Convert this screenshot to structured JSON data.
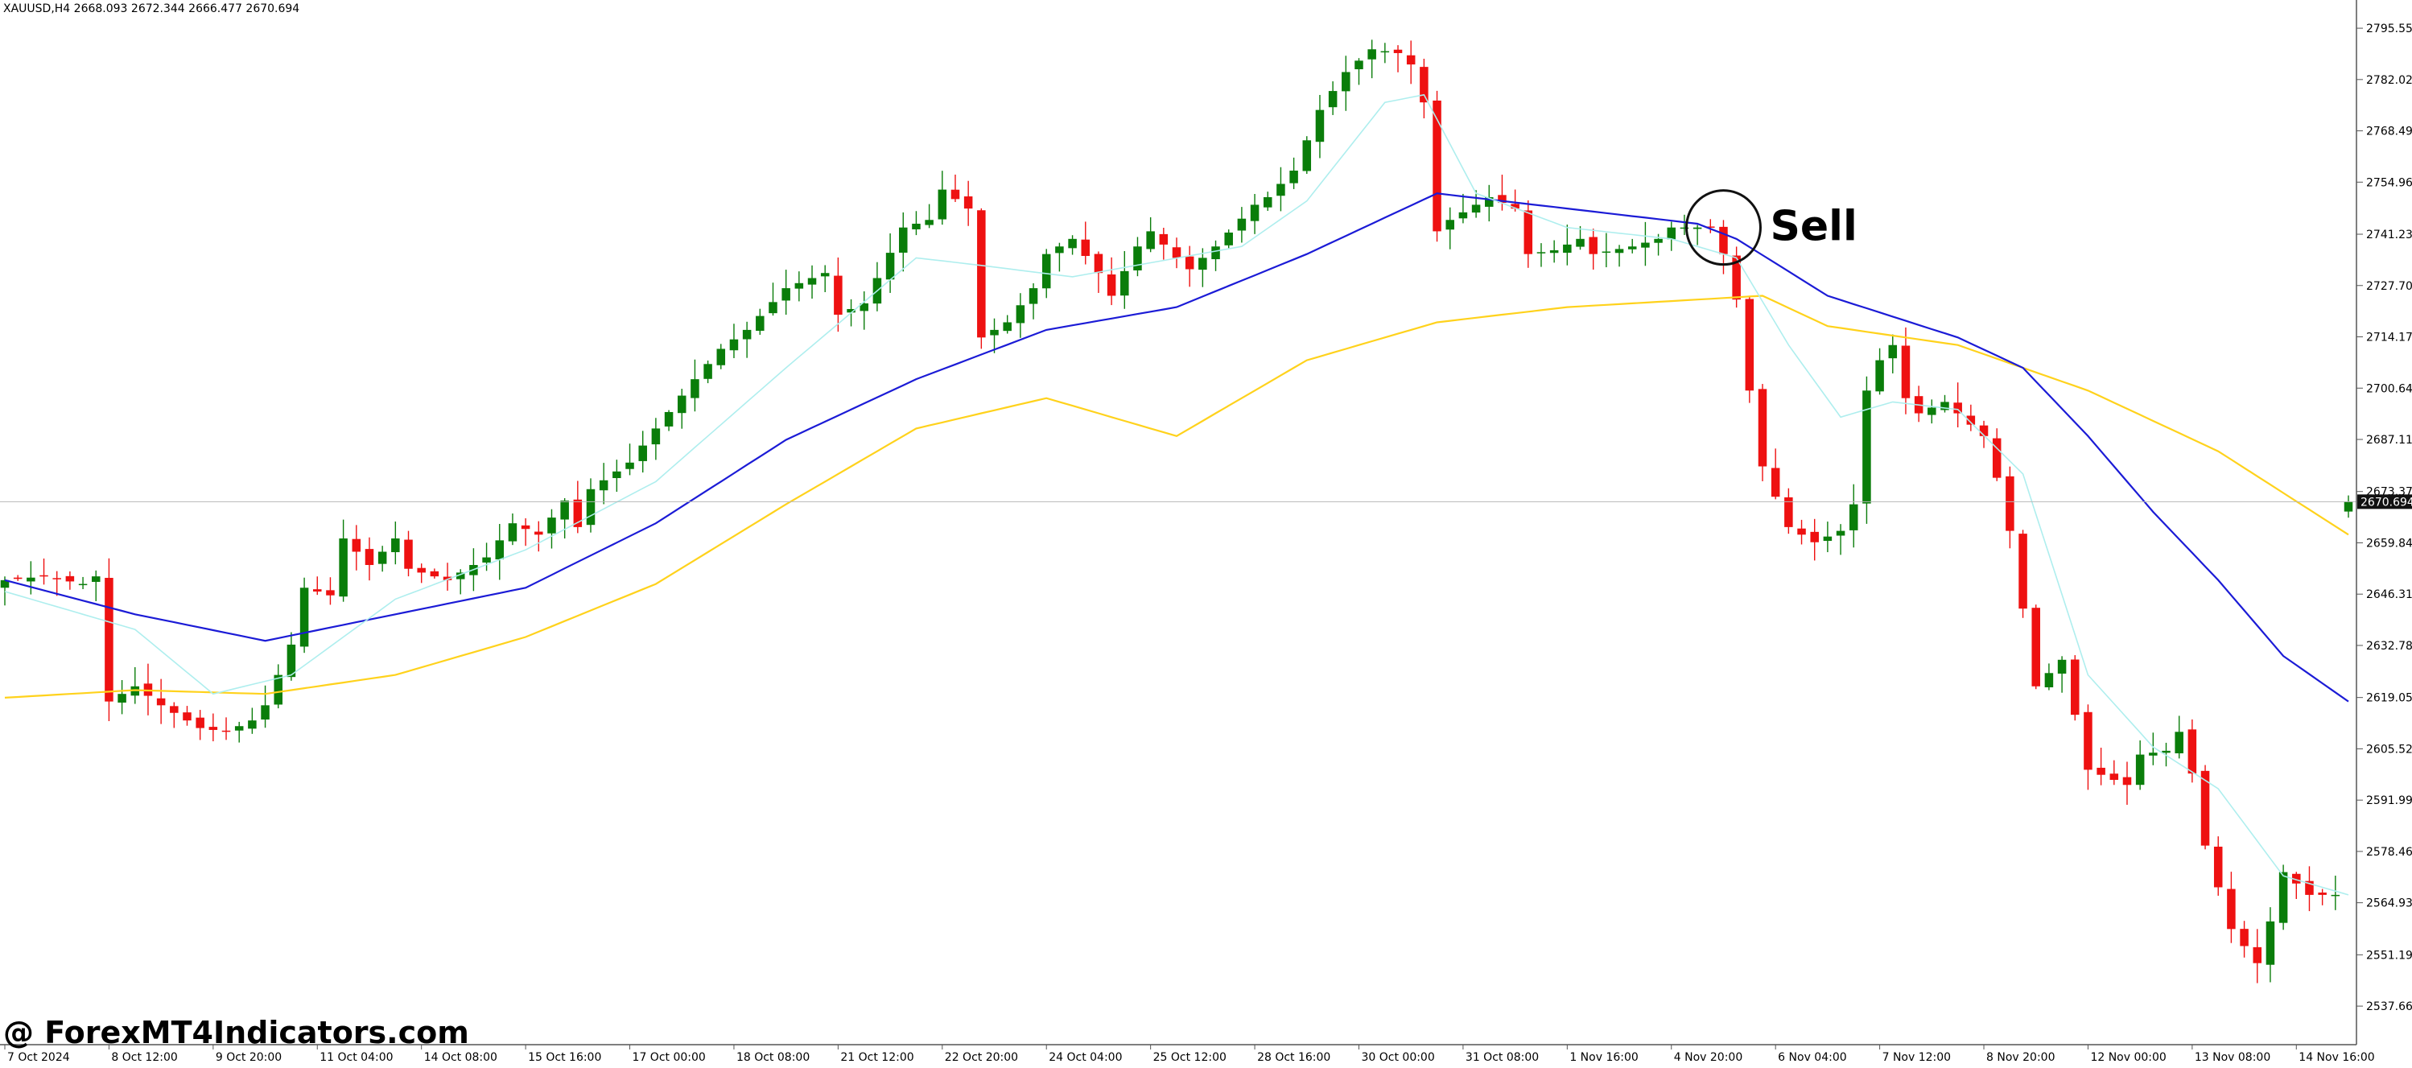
{
  "header": {
    "info": "XAUUSD,H4  2668.093 2672.344 2666.477 2670.694"
  },
  "annotation": {
    "label": "Sell"
  },
  "watermark": {
    "text": "@ ForexMT4Indicators.com"
  },
  "current_price_label": "2670.694",
  "chart_data": {
    "type": "candlestick",
    "symbol": "XAUUSD",
    "timeframe": "H4",
    "last_quote": {
      "open": 2668.093,
      "high": 2672.344,
      "low": 2666.477,
      "close": 2670.694
    },
    "ylim": [
      2527.5,
      2803.0
    ],
    "y_ticks": [
      "2795.555",
      "2782.025",
      "2768.495",
      "2754.965",
      "2741.230",
      "2727.700",
      "2714.170",
      "2700.640",
      "2687.110",
      "2673.375",
      "2659.845",
      "2646.315",
      "2632.785",
      "2619.050",
      "2605.520",
      "2591.990",
      "2578.460",
      "2564.930",
      "2551.195",
      "2537.665"
    ],
    "x_tick_labels": [
      {
        "bar": 0,
        "label": "7 Oct 2024"
      },
      {
        "bar": 8,
        "label": "8 Oct 12:00"
      },
      {
        "bar": 16,
        "label": "9 Oct 20:00"
      },
      {
        "bar": 24,
        "label": "11 Oct 04:00"
      },
      {
        "bar": 32,
        "label": "14 Oct 08:00"
      },
      {
        "bar": 40,
        "label": "15 Oct 16:00"
      },
      {
        "bar": 48,
        "label": "17 Oct 00:00"
      },
      {
        "bar": 56,
        "label": "18 Oct 08:00"
      },
      {
        "bar": 64,
        "label": "21 Oct 12:00"
      },
      {
        "bar": 72,
        "label": "22 Oct 20:00"
      },
      {
        "bar": 80,
        "label": "24 Oct 04:00"
      },
      {
        "bar": 88,
        "label": "25 Oct 12:00"
      },
      {
        "bar": 96,
        "label": "28 Oct 16:00"
      },
      {
        "bar": 104,
        "label": "30 Oct 00:00"
      },
      {
        "bar": 112,
        "label": "31 Oct 08:00"
      },
      {
        "bar": 120,
        "label": "1 Nov 16:00"
      },
      {
        "bar": 128,
        "label": "4 Nov 20:00"
      },
      {
        "bar": 136,
        "label": "6 Nov 04:00"
      },
      {
        "bar": 144,
        "label": "7 Nov 12:00"
      },
      {
        "bar": 152,
        "label": "8 Nov 20:00"
      },
      {
        "bar": 160,
        "label": "12 Nov 00:00"
      },
      {
        "bar": 168,
        "label": "13 Nov 08:00"
      },
      {
        "bar": 176,
        "label": "14 Nov 16:00"
      }
    ],
    "close_anchors": [
      [
        0,
        2650
      ],
      [
        3,
        2651
      ],
      [
        6,
        2649
      ],
      [
        7,
        2651
      ],
      [
        8,
        2618
      ],
      [
        10,
        2622
      ],
      [
        12,
        2617
      ],
      [
        15,
        2611
      ],
      [
        17,
        2610
      ],
      [
        19,
        2613
      ],
      [
        20,
        2617
      ],
      [
        22,
        2633
      ],
      [
        23,
        2648
      ],
      [
        25,
        2646
      ],
      [
        26,
        2661
      ],
      [
        28,
        2654
      ],
      [
        30,
        2661
      ],
      [
        31,
        2653
      ],
      [
        34,
        2650
      ],
      [
        37,
        2656
      ],
      [
        39,
        2665
      ],
      [
        41,
        2662
      ],
      [
        43,
        2671
      ],
      [
        44,
        2664
      ],
      [
        45,
        2674
      ],
      [
        48,
        2681
      ],
      [
        50,
        2690
      ],
      [
        53,
        2703
      ],
      [
        55,
        2711
      ],
      [
        57,
        2716
      ],
      [
        60,
        2727
      ],
      [
        63,
        2731
      ],
      [
        64,
        2720
      ],
      [
        66,
        2723
      ],
      [
        69,
        2743
      ],
      [
        71,
        2745
      ],
      [
        72,
        2753
      ],
      [
        74,
        2748
      ],
      [
        75,
        2714
      ],
      [
        77,
        2718
      ],
      [
        79,
        2727
      ],
      [
        80,
        2736
      ],
      [
        82,
        2740
      ],
      [
        84,
        2731
      ],
      [
        85,
        2725
      ],
      [
        87,
        2738
      ],
      [
        88,
        2742
      ],
      [
        90,
        2735
      ],
      [
        91,
        2732
      ],
      [
        93,
        2738
      ],
      [
        96,
        2749
      ],
      [
        97,
        2751
      ],
      [
        99,
        2758
      ],
      [
        101,
        2774
      ],
      [
        103,
        2784
      ],
      [
        105,
        2790
      ],
      [
        107,
        2789
      ],
      [
        108,
        2786
      ],
      [
        109,
        2776
      ],
      [
        110,
        2742
      ],
      [
        111,
        2745
      ],
      [
        113,
        2749
      ],
      [
        114,
        2751
      ],
      [
        116,
        2748
      ],
      [
        117,
        2736
      ],
      [
        119,
        2737
      ],
      [
        121,
        2740
      ],
      [
        122,
        2736
      ],
      [
        125,
        2738
      ],
      [
        127,
        2740
      ],
      [
        128,
        2743
      ],
      [
        131,
        2743
      ],
      [
        132,
        2736
      ],
      [
        133,
        2724
      ],
      [
        134,
        2700
      ],
      [
        135,
        2680
      ],
      [
        137,
        2664
      ],
      [
        139,
        2660
      ],
      [
        141,
        2663
      ],
      [
        142,
        2670
      ],
      [
        143,
        2700
      ],
      [
        144,
        2708
      ],
      [
        145,
        2712
      ],
      [
        146,
        2698
      ],
      [
        147,
        2694
      ],
      [
        149,
        2697
      ],
      [
        151,
        2691
      ],
      [
        152,
        2688
      ],
      [
        153,
        2677
      ],
      [
        154,
        2663
      ],
      [
        156,
        2622
      ],
      [
        158,
        2629
      ],
      [
        160,
        2600
      ],
      [
        163,
        2596
      ],
      [
        164,
        2604
      ],
      [
        166,
        2605
      ],
      [
        167,
        2610
      ],
      [
        168,
        2599
      ],
      [
        169,
        2580
      ],
      [
        171,
        2558
      ],
      [
        173,
        2549
      ],
      [
        174,
        2560
      ],
      [
        175,
        2573
      ],
      [
        177,
        2567
      ],
      [
        179,
        2567
      ],
      [
        180,
        2564
      ]
    ],
    "ema_fast": {
      "color": "#aeeeee",
      "anchors": [
        [
          0,
          2647
        ],
        [
          10,
          2637
        ],
        [
          16,
          2620
        ],
        [
          22,
          2625
        ],
        [
          30,
          2645
        ],
        [
          40,
          2658
        ],
        [
          50,
          2676
        ],
        [
          60,
          2706
        ],
        [
          70,
          2735
        ],
        [
          75,
          2733
        ],
        [
          82,
          2730
        ],
        [
          95,
          2738
        ],
        [
          100,
          2750
        ],
        [
          106,
          2776
        ],
        [
          109,
          2778
        ],
        [
          113,
          2752
        ],
        [
          120,
          2743
        ],
        [
          128,
          2740
        ],
        [
          133,
          2735
        ],
        [
          137,
          2712
        ],
        [
          141,
          2693
        ],
        [
          145,
          2697
        ],
        [
          150,
          2695
        ],
        [
          155,
          2678
        ],
        [
          160,
          2625
        ],
        [
          165,
          2606
        ],
        [
          170,
          2595
        ],
        [
          175,
          2572
        ],
        [
          180,
          2567
        ]
      ]
    },
    "ema_mid": {
      "color": "#1b1bd6",
      "anchors": [
        [
          0,
          2650
        ],
        [
          10,
          2641
        ],
        [
          20,
          2634
        ],
        [
          30,
          2641
        ],
        [
          40,
          2648
        ],
        [
          50,
          2665
        ],
        [
          60,
          2687
        ],
        [
          70,
          2703
        ],
        [
          80,
          2716
        ],
        [
          90,
          2722
        ],
        [
          100,
          2736
        ],
        [
          110,
          2752
        ],
        [
          120,
          2748
        ],
        [
          130,
          2744
        ],
        [
          133,
          2740
        ],
        [
          140,
          2725
        ],
        [
          150,
          2714
        ],
        [
          155,
          2706
        ],
        [
          160,
          2688
        ],
        [
          165,
          2668
        ],
        [
          170,
          2650
        ],
        [
          175,
          2630
        ],
        [
          180,
          2618
        ]
      ]
    },
    "ema_slow": {
      "color": "#ffd21c",
      "anchors": [
        [
          0,
          2619
        ],
        [
          10,
          2621
        ],
        [
          20,
          2620
        ],
        [
          30,
          2625
        ],
        [
          40,
          2635
        ],
        [
          50,
          2649
        ],
        [
          60,
          2670
        ],
        [
          70,
          2690
        ],
        [
          80,
          2698
        ],
        [
          90,
          2688
        ],
        [
          100,
          2708
        ],
        [
          110,
          2718
        ],
        [
          120,
          2722
        ],
        [
          130,
          2724
        ],
        [
          135,
          2725
        ],
        [
          140,
          2717
        ],
        [
          150,
          2712
        ],
        [
          160,
          2700
        ],
        [
          170,
          2684
        ],
        [
          180,
          2662
        ]
      ]
    },
    "signal": {
      "bar": 132,
      "price": 2743,
      "label": "Sell"
    },
    "grid": false
  }
}
